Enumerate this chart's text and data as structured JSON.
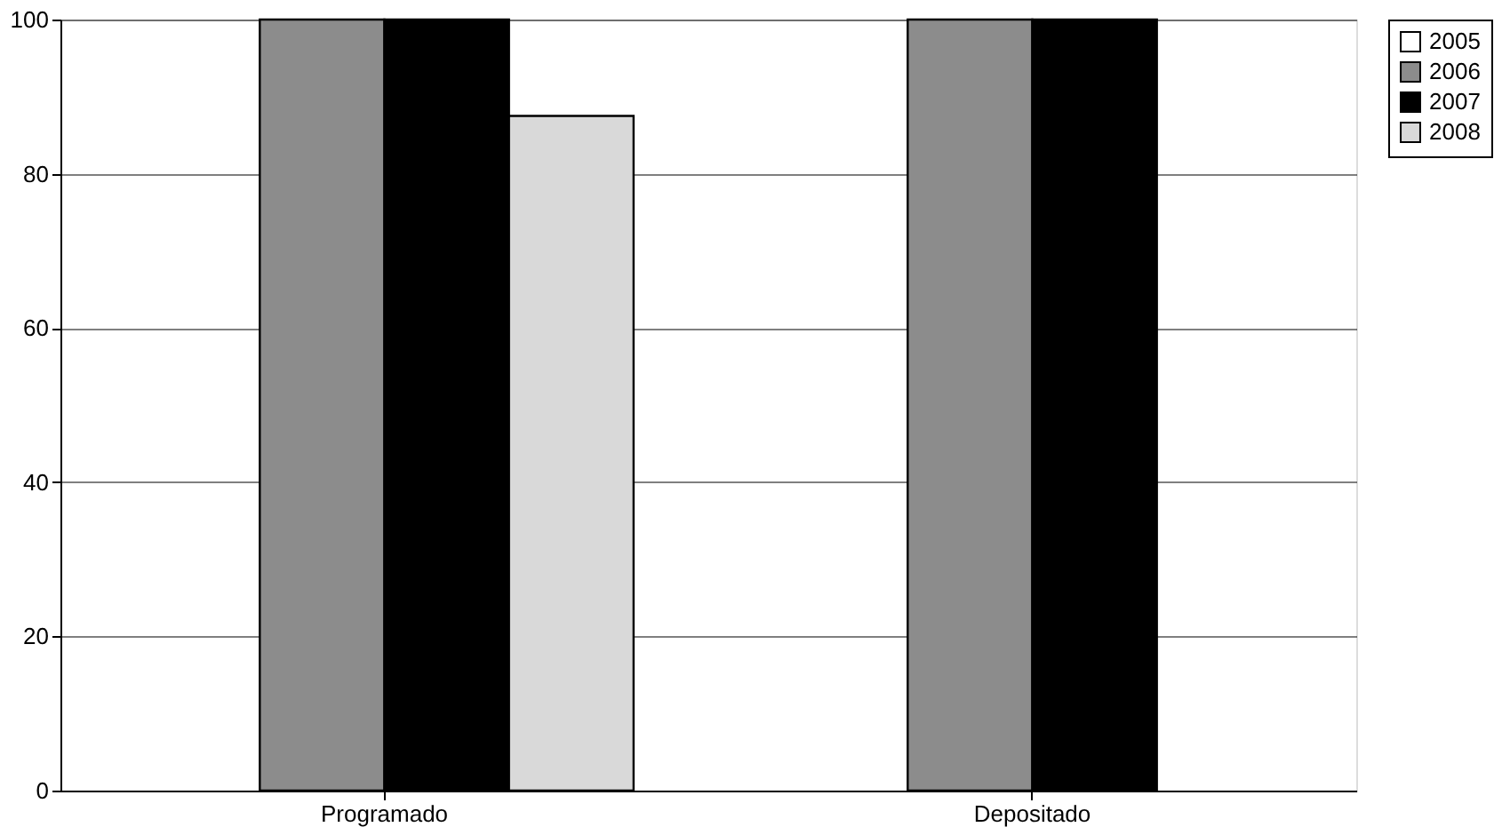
{
  "chart_data": {
    "type": "bar",
    "categories": [
      "Programado",
      "Depositado"
    ],
    "series": [
      {
        "name": "2005",
        "color": "#ffffff",
        "values": [
          null,
          null
        ]
      },
      {
        "name": "2006",
        "color": "#8c8c8c",
        "values": [
          100,
          100
        ]
      },
      {
        "name": "2007",
        "color": "#000000",
        "values": [
          100,
          100
        ]
      },
      {
        "name": "2008",
        "color": "#d9d9d9",
        "values": [
          87.5,
          null
        ]
      }
    ],
    "ylim": [
      0,
      100
    ],
    "yticks": [
      0,
      20,
      40,
      60,
      80,
      100
    ],
    "grid": "y",
    "legend": "right"
  }
}
